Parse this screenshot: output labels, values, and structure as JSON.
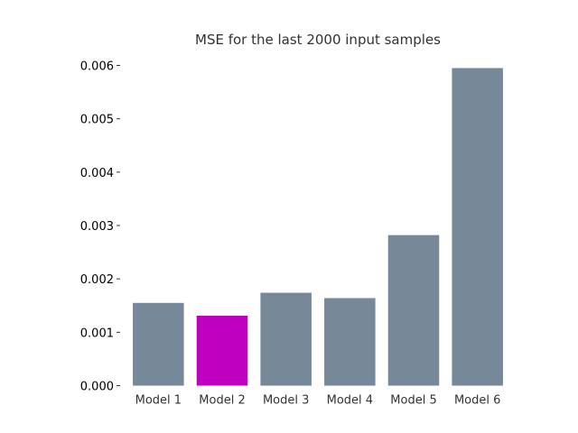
{
  "chart_data": {
    "type": "bar",
    "title": "MSE for the last 2000 input samples",
    "xlabel": "",
    "ylabel": "",
    "categories": [
      "Model 1",
      "Model 2",
      "Model 3",
      "Model 4",
      "Model 5",
      "Model 6"
    ],
    "values": [
      0.00155,
      0.00131,
      0.00174,
      0.00164,
      0.00282,
      0.00595
    ],
    "bar_colors": [
      "#778899",
      "#c000c0",
      "#778899",
      "#778899",
      "#778899",
      "#778899"
    ],
    "ylim": [
      0,
      0.006
    ],
    "yticks": [
      0,
      0.001,
      0.002,
      0.003,
      0.004,
      0.005,
      0.006
    ],
    "ytick_labels": [
      "0.000",
      "0.001",
      "0.002",
      "0.003",
      "0.004",
      "0.005",
      "0.006"
    ],
    "grid": false,
    "legend": "none"
  }
}
